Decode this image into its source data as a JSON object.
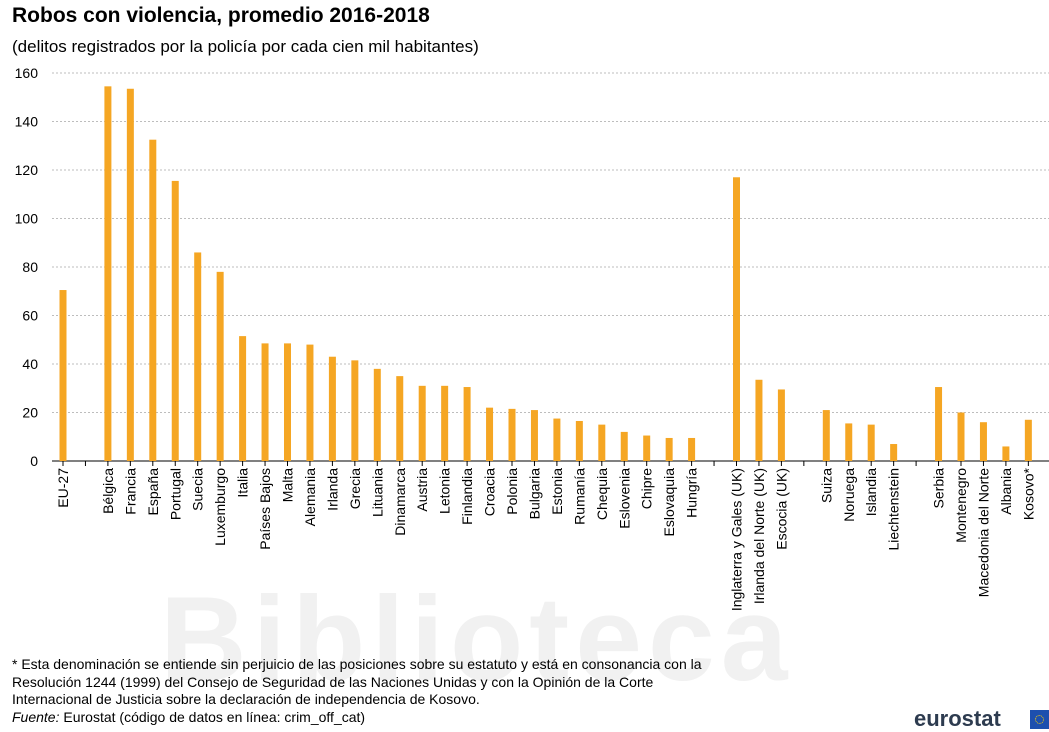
{
  "chart_data": {
    "type": "bar",
    "title": "Robos con violencia, promedio 2016-2018",
    "subtitle": "(delitos registrados por la policía por cada cien mil habitantes)",
    "categories": [
      "EU-27",
      "",
      "Bélgica",
      "Francia",
      "España",
      "Portugal",
      "Suecia",
      "Luxemburgo",
      "Italia",
      "Países Bajos",
      "Malta",
      "Alemania",
      "Irlanda",
      "Grecia",
      "Lituania",
      "Dinamarca",
      "Austria",
      "Letonia",
      "Finlandia",
      "Croacia",
      "Polonia",
      "Bulgaria",
      "Estonia",
      "Rumanía",
      "Chequia",
      "Eslovenia",
      "Chipre",
      "Eslovaquia",
      "Hungría",
      "",
      "Inglaterra y Gales (UK)",
      "Irlanda del Norte (UK)",
      "Escocia (UK)",
      "",
      "Suiza",
      "Noruega",
      "Islandia",
      "Liechtenstein",
      "",
      "Serbia",
      "Montenegro",
      "Macedonia del Norte",
      "Albania",
      "Kosovo*"
    ],
    "values": [
      70.5,
      null,
      154.5,
      153.5,
      132.5,
      115.5,
      86,
      78,
      51.5,
      48.5,
      48.5,
      48,
      43,
      41.5,
      38,
      35,
      31,
      31,
      30.5,
      22,
      21.5,
      21,
      17.5,
      16.5,
      15,
      12,
      10.5,
      9.5,
      9.5,
      null,
      117,
      33.5,
      29.5,
      null,
      21,
      15.5,
      15,
      7,
      null,
      30.5,
      20,
      16,
      6,
      17
    ],
    "ylim": [
      0,
      160
    ],
    "yticks": [
      0,
      20,
      40,
      60,
      80,
      100,
      120,
      140,
      160
    ],
    "grid": true,
    "bar_color": "#f5a623"
  },
  "footnote_lines": [
    "* Esta denominación se entiende sin perjuicio de las posiciones sobre su estatuto y está en consonancia con la",
    "Resolución 1244 (1999) del Consejo de Seguridad de las Naciones Unidas y con la Opinión de la Corte",
    "Internacional de Justicia sobre la declaración de independencia de Kosovo."
  ],
  "source": {
    "label": "Fuente:",
    "text": " Eurostat (código de datos en línea: crim_off_cat)"
  },
  "logo": {
    "text": "eurostat"
  },
  "watermark": "Biblioteca"
}
